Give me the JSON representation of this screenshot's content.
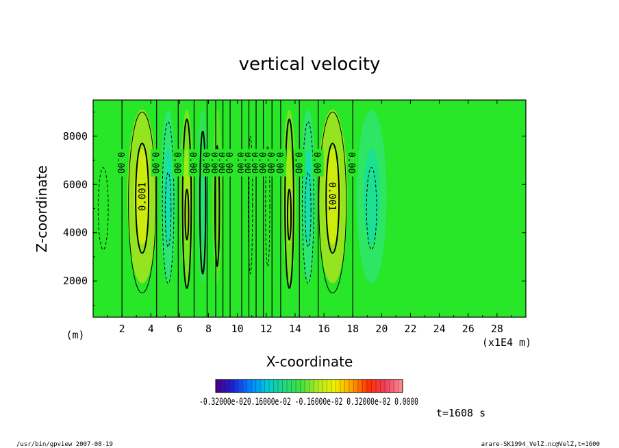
{
  "chart_data": {
    "type": "heatmap",
    "title": "vertical velocity",
    "xlabel": "X-coordinate",
    "ylabel": "Z-coordinate",
    "x_unit_left": "(m)",
    "x_unit_right": "(x1E4 m)",
    "xlim": [
      0,
      30
    ],
    "ylim": [
      500,
      9500
    ],
    "x_ticks": [
      2,
      4,
      6,
      8,
      10,
      12,
      14,
      16,
      18,
      20,
      22,
      24,
      26,
      28
    ],
    "x_tick_labels": [
      "2",
      "4",
      "6",
      "8",
      "10",
      "12",
      "14",
      "16",
      "18",
      "20",
      "22",
      "24",
      "26",
      "28"
    ],
    "y_ticks": [
      2000,
      4000,
      6000,
      8000
    ],
    "y_tick_labels": [
      "2000",
      "4000",
      "6000",
      "8000"
    ],
    "field_center_z": 5500,
    "field_half_height": 3600,
    "anomalies": [
      {
        "x": 3.4,
        "halfwidth": 0.9,
        "amp": 1.0
      },
      {
        "x": 5.2,
        "halfwidth": 0.45,
        "amp": -0.75
      },
      {
        "x": 6.5,
        "halfwidth": 0.4,
        "amp": 0.6
      },
      {
        "x": 7.6,
        "halfwidth": 0.35,
        "amp": -0.3
      },
      {
        "x": 8.6,
        "halfwidth": 0.3,
        "amp": 0.2
      },
      {
        "x": 13.6,
        "halfwidth": 0.4,
        "amp": 0.6
      },
      {
        "x": 14.9,
        "halfwidth": 0.45,
        "amp": -0.75
      },
      {
        "x": 16.6,
        "halfwidth": 0.9,
        "amp": 1.0
      },
      {
        "x": 19.3,
        "halfwidth": 0.9,
        "amp": -0.55
      }
    ],
    "zero_contours_x": [
      2.0,
      4.4,
      5.9,
      7.0,
      7.9,
      8.5,
      9.0,
      9.5,
      10.3,
      10.8,
      11.3,
      11.8,
      12.4,
      13.0,
      14.3,
      15.6,
      18.0
    ],
    "zero_contour_labels": [
      {
        "x": 2.0,
        "text": "0.00"
      },
      {
        "x": 4.4,
        "text": "0.00"
      },
      {
        "x": 5.9,
        "text": "0.00"
      },
      {
        "x": 7.0,
        "text": "0.00"
      },
      {
        "x": 7.9,
        "text": "0.00"
      },
      {
        "x": 8.5,
        "text": "0.00"
      },
      {
        "x": 9.0,
        "text": "0.00"
      },
      {
        "x": 9.5,
        "text": "0.00"
      },
      {
        "x": 10.3,
        "text": "0.00"
      },
      {
        "x": 10.8,
        "text": "0.00"
      },
      {
        "x": 11.3,
        "text": "0.00"
      },
      {
        "x": 11.8,
        "text": "0.00"
      },
      {
        "x": 12.4,
        "text": "0.00"
      },
      {
        "x": 13.0,
        "text": "0.00"
      },
      {
        "x": 14.3,
        "text": "0.00"
      },
      {
        "x": 15.6,
        "text": "0.00"
      },
      {
        "x": 18.0,
        "text": "0.00"
      }
    ],
    "positive_contours": [
      {
        "x": 3.4,
        "half_width": 0.95,
        "z_min": 1500,
        "z_max": 9000
      },
      {
        "x": 3.4,
        "half_width": 0.45,
        "z_min": 3150,
        "z_max": 7700
      },
      {
        "x": 6.5,
        "half_width": 0.3,
        "z_min": 1700,
        "z_max": 8700
      },
      {
        "x": 6.5,
        "half_width": 0.12,
        "z_min": 3700,
        "z_max": 5800
      },
      {
        "x": 7.6,
        "half_width": 0.2,
        "z_min": 2300,
        "z_max": 8200
      },
      {
        "x": 8.6,
        "half_width": 0.15,
        "z_min": 2600,
        "z_max": 7600
      },
      {
        "x": 13.6,
        "half_width": 0.3,
        "z_min": 1700,
        "z_max": 8700
      },
      {
        "x": 13.6,
        "half_width": 0.12,
        "z_min": 3700,
        "z_max": 5800
      },
      {
        "x": 16.6,
        "half_width": 0.95,
        "z_min": 1500,
        "z_max": 9000
      },
      {
        "x": 16.6,
        "half_width": 0.45,
        "z_min": 3150,
        "z_max": 7700
      }
    ],
    "negative_contours": [
      {
        "x": 5.2,
        "half_width": 0.4,
        "z_min": 1900,
        "z_max": 8600
      },
      {
        "x": 5.2,
        "half_width": 0.2,
        "z_min": 3400,
        "z_max": 6500
      },
      {
        "x": 14.9,
        "half_width": 0.4,
        "z_min": 1900,
        "z_max": 8600
      },
      {
        "x": 14.9,
        "half_width": 0.2,
        "z_min": 3400,
        "z_max": 6500
      },
      {
        "x": 10.9,
        "half_width": 0.15,
        "z_min": 2300,
        "z_max": 8000
      },
      {
        "x": 12.1,
        "half_width": 0.15,
        "z_min": 2600,
        "z_max": 7600
      },
      {
        "x": 19.3,
        "half_width": 0.35,
        "z_min": 3300,
        "z_max": 6700
      },
      {
        "x": 0.7,
        "half_width": 0.35,
        "z_min": 3300,
        "z_max": 6700
      }
    ],
    "max_labels": [
      {
        "x": 3.4,
        "text": "0.001"
      },
      {
        "x": 16.6,
        "text": "0.001"
      }
    ],
    "colorbar": {
      "colors": [
        "#4b0082",
        "#2020d0",
        "#0080ff",
        "#00c8d8",
        "#20d880",
        "#40e040",
        "#b0e820",
        "#f0f000",
        "#ffa000",
        "#ff3000",
        "#f04060",
        "#ff9090"
      ],
      "label_text": "-0.32000e-020.16000e-02 -0.16000e-02 0.32000e-02 0.0000"
    },
    "colorscale_field": {
      "bg": "#28e628",
      "pos_mid": "#b8e41e",
      "pos_max": "#f0f000",
      "neg_mid": "#30e6a0",
      "neg_max": "#00d8e0"
    },
    "time_label": "t=1608 s",
    "footer_left": "/usr/bin/gpview   2007-08-19",
    "footer_right": "arare-SK1994_VelZ.nc@VelZ,t=1600"
  }
}
